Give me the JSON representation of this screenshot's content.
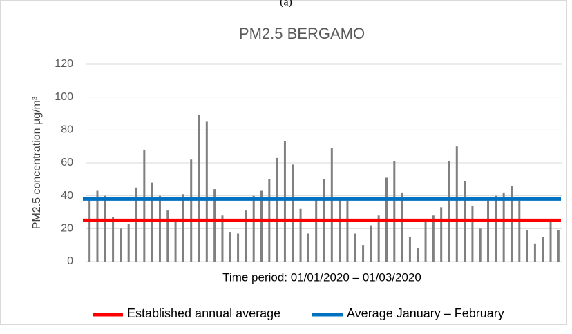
{
  "caption": "(a)",
  "chart_data": {
    "type": "bar",
    "title": "PM2.5 BERGAMO",
    "y_label": "PM2.5 concentration µg/m³",
    "x_label": "Time period: 01/01/2020 – 01/03/2020",
    "categories": [
      null,
      null,
      null,
      null,
      null,
      null,
      null,
      null,
      null,
      null,
      null,
      null,
      null,
      null,
      null,
      null,
      null,
      null,
      null,
      null,
      null,
      null,
      null,
      null,
      null,
      null,
      null,
      null,
      null,
      null,
      null,
      null,
      null,
      null,
      null,
      null,
      null,
      null,
      null,
      null,
      null,
      null,
      null,
      null,
      null,
      null,
      null,
      null,
      null,
      null,
      null,
      null,
      null,
      null,
      null,
      null,
      null,
      null,
      null,
      null,
      null
    ],
    "values": [
      39,
      43,
      40,
      27,
      20,
      23,
      45,
      68,
      48,
      40,
      31,
      25,
      41,
      62,
      89,
      85,
      44,
      28,
      18,
      17,
      31,
      40,
      43,
      50,
      63,
      73,
      59,
      32,
      17,
      38,
      50,
      69,
      38,
      37,
      17,
      10,
      22,
      28,
      51,
      61,
      42,
      15,
      8,
      25,
      28,
      33,
      61,
      70,
      49,
      34,
      20,
      37,
      40,
      42,
      46,
      37,
      19,
      11,
      15,
      24,
      19
    ],
    "color": "#808080",
    "reference_lines": [
      {
        "name": "Established annual average",
        "color": "#ff0000",
        "value": 25
      },
      {
        "name": "Average January – February",
        "color": "#0070c0",
        "value": 38
      }
    ],
    "ylim": [
      0,
      120
    ],
    "yticks": [
      0,
      20,
      40,
      60,
      80,
      100,
      120
    ],
    "grid": true
  }
}
